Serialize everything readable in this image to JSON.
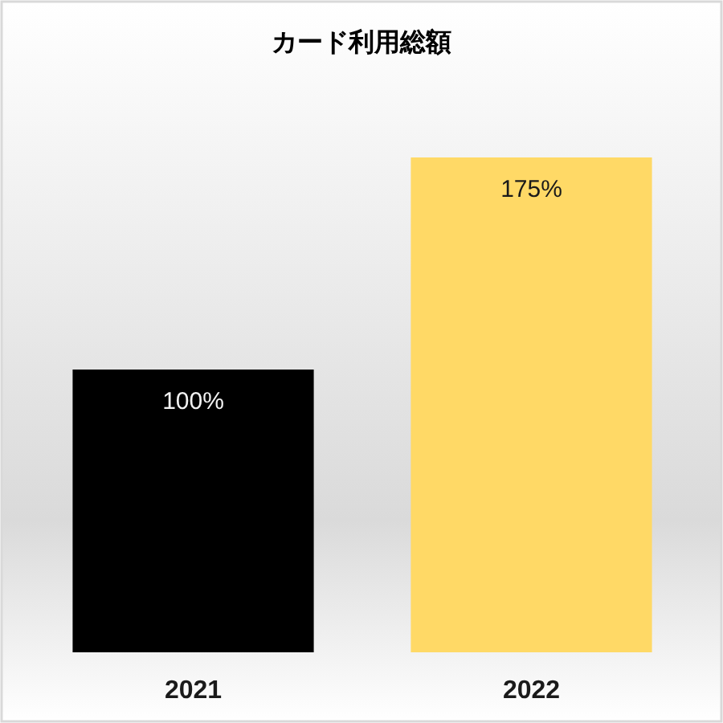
{
  "chart_data": {
    "type": "bar",
    "title": "カード利用総額",
    "categories": [
      "2021",
      "2022"
    ],
    "values": [
      100,
      175
    ],
    "colors": [
      "#000000",
      "#ffd966"
    ],
    "value_labels": [
      "100%",
      "175%"
    ]
  }
}
